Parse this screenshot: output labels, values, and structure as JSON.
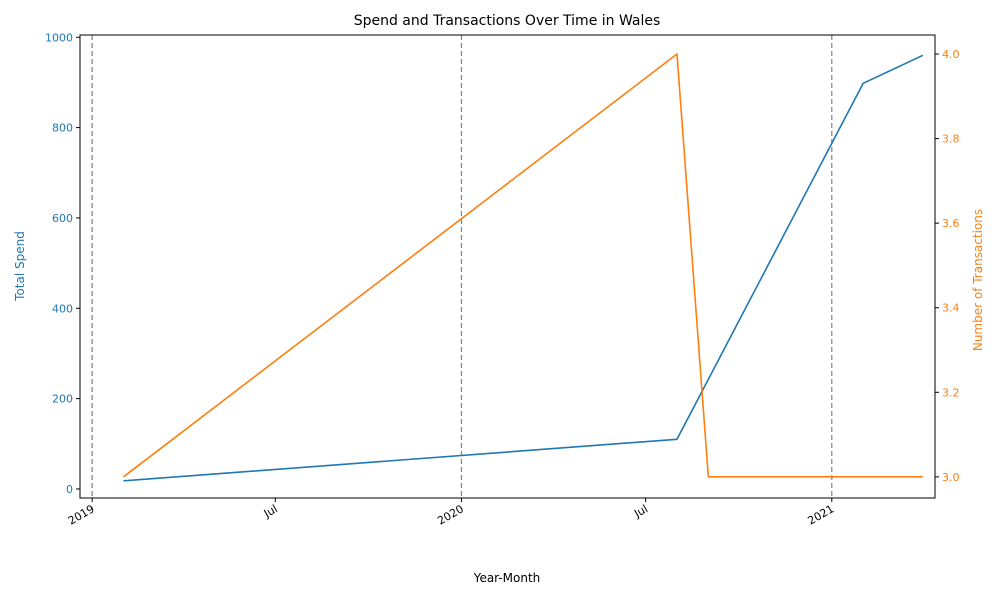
{
  "chart_data": {
    "type": "line",
    "title": "Spend and Transactions Over Time in Wales",
    "xlabel": "Year-Month",
    "x_type": "date",
    "xlim": [
      "2018-12-20",
      "2021-04-13"
    ],
    "x_ticks": [
      {
        "date": "2019-01-01",
        "label": "2019"
      },
      {
        "date": "2019-07-01",
        "label": "Jul"
      },
      {
        "date": "2020-01-01",
        "label": "2020"
      },
      {
        "date": "2020-07-01",
        "label": "Jul"
      },
      {
        "date": "2021-01-01",
        "label": "2021"
      }
    ],
    "year_lines": [
      "2019-01-01",
      "2020-01-01",
      "2021-01-01"
    ],
    "colors": {
      "spend": "#1f77b4",
      "transactions": "#ff7f0e",
      "grid": "#808080"
    },
    "left_axis": {
      "label": "Total Spend",
      "ylim": [
        -20,
        1005
      ],
      "ticks": [
        0,
        200,
        400,
        600,
        800,
        1000
      ]
    },
    "right_axis": {
      "label": "Number of Transactions",
      "ylim": [
        2.95,
        4.045
      ],
      "ticks": [
        3.0,
        3.2,
        3.4,
        3.6,
        3.8,
        4.0
      ],
      "tick_labels": [
        "3.0",
        "3.2",
        "3.4",
        "3.6",
        "3.8",
        "4.0"
      ]
    },
    "series": [
      {
        "name": "Total Spend",
        "axis": "left",
        "color": "#1f77b4",
        "points": [
          {
            "x": "2019-02-01",
            "y": 18
          },
          {
            "x": "2020-08-01",
            "y": 110
          },
          {
            "x": "2021-02-01",
            "y": 898
          },
          {
            "x": "2021-04-01",
            "y": 960
          }
        ]
      },
      {
        "name": "Number of Transactions",
        "axis": "right",
        "color": "#ff7f0e",
        "points": [
          {
            "x": "2019-02-01",
            "y": 3.0
          },
          {
            "x": "2020-08-01",
            "y": 4.0
          },
          {
            "x": "2020-09-01",
            "y": 3.0
          },
          {
            "x": "2021-04-01",
            "y": 3.0
          }
        ]
      }
    ]
  }
}
